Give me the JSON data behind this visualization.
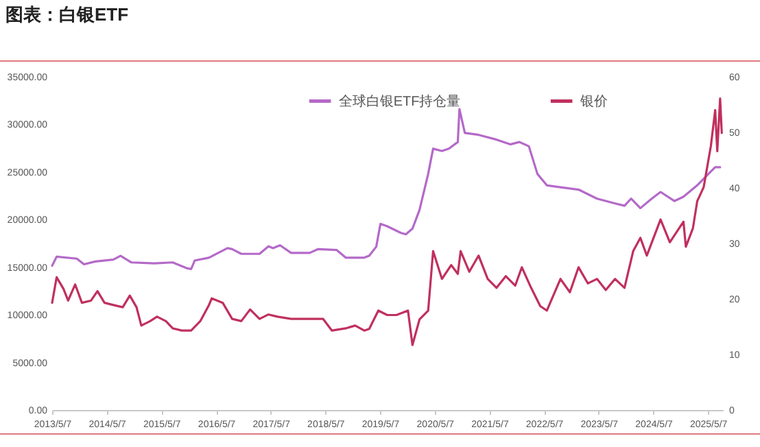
{
  "chart_data": {
    "type": "line",
    "title": "图表：白银ETF",
    "legend": "top",
    "xlim": [
      "2013-05-07",
      "2025-08-15"
    ],
    "xticks": [
      {
        "value": "2013-05-07",
        "label": "2013/5/7"
      },
      {
        "value": "2014-05-07",
        "label": "2014/5/7"
      },
      {
        "value": "2015-05-07",
        "label": "2015/5/7"
      },
      {
        "value": "2016-05-07",
        "label": "2016/5/7"
      },
      {
        "value": "2017-05-07",
        "label": "2017/5/7"
      },
      {
        "value": "2018-05-07",
        "label": "2018/5/7"
      },
      {
        "value": "2019-05-07",
        "label": "2019/5/7"
      },
      {
        "value": "2020-05-07",
        "label": "2020/5/7"
      },
      {
        "value": "2021-05-07",
        "label": "2021/5/7"
      },
      {
        "value": "2022-05-07",
        "label": "2022/5/7"
      },
      {
        "value": "2023-05-07",
        "label": "2023/5/7"
      },
      {
        "value": "2024-05-07",
        "label": "2024/5/7"
      },
      {
        "value": "2025-05-07",
        "label": "2025/5/7"
      }
    ],
    "ylim": [
      0,
      35000
    ],
    "yticks": [
      {
        "value": 0,
        "label": "0.00"
      },
      {
        "value": 5000,
        "label": "5000.00"
      },
      {
        "value": 10000,
        "label": "10000.00"
      },
      {
        "value": 15000,
        "label": "15000.00"
      },
      {
        "value": 20000,
        "label": "20000.00"
      },
      {
        "value": 25000,
        "label": "25000.00"
      },
      {
        "value": 30000,
        "label": "30000.00"
      },
      {
        "value": 35000,
        "label": "35000.00"
      }
    ],
    "y2lim": [
      0,
      60
    ],
    "y2ticks": [
      0,
      10,
      20,
      30,
      40,
      50,
      60
    ],
    "series": [
      {
        "name": "全球白银ETF持仓量",
        "color": "#b469c8",
        "x": [
          "2013-05-07",
          "2013-06-06",
          "2013-10-19",
          "2013-12-06",
          "2014-02-21",
          "2014-06-20",
          "2014-08-07",
          "2014-10-19",
          "2015-03-20",
          "2015-07-22",
          "2015-10-22",
          "2015-11-22",
          "2015-12-16",
          "2016-03-20",
          "2016-07-22",
          "2016-08-22",
          "2016-10-22",
          "2017-02-21",
          "2017-04-22",
          "2017-05-22",
          "2017-07-08",
          "2017-09-20",
          "2018-01-22",
          "2018-03-20",
          "2018-07-22",
          "2018-09-20",
          "2019-01-22",
          "2019-02-24",
          "2019-04-12",
          "2019-05-10",
          "2019-06-24",
          "2019-09-24",
          "2019-10-27",
          "2019-12-10",
          "2020-01-26",
          "2020-03-24",
          "2020-04-26",
          "2020-06-24",
          "2020-08-10",
          "2020-10-08",
          "2020-10-19",
          "2020-11-24",
          "2021-02-24",
          "2021-06-24",
          "2021-09-24",
          "2021-11-24",
          "2022-01-26",
          "2022-03-24",
          "2022-05-26",
          "2022-08-25",
          "2022-12-24",
          "2023-04-26",
          "2023-08-25",
          "2023-10-27",
          "2023-12-10",
          "2024-02-10",
          "2024-04-26",
          "2024-06-24",
          "2024-09-24",
          "2024-11-24",
          "2025-02-24",
          "2025-05-10",
          "2025-06-24",
          "2025-07-27"
        ],
        "values": [
          15150,
          16100,
          15900,
          15300,
          15600,
          15800,
          16200,
          15500,
          15400,
          15500,
          14900,
          14800,
          15700,
          16000,
          17000,
          16900,
          16400,
          16400,
          17200,
          17000,
          17300,
          16500,
          16500,
          16900,
          16800,
          16000,
          16000,
          16200,
          17150,
          19550,
          19300,
          18600,
          18450,
          19050,
          21000,
          24800,
          27450,
          27200,
          27450,
          28150,
          31600,
          29100,
          28900,
          28400,
          27900,
          28150,
          27700,
          24800,
          23600,
          23400,
          23150,
          22200,
          21700,
          21450,
          22200,
          21200,
          22200,
          22900,
          21950,
          22400,
          23600,
          24800,
          25500,
          25500
        ]
      },
      {
        "name": "银价",
        "color": "#c0305e",
        "axis": "y2",
        "x": [
          "2013-05-07",
          "2013-06-06",
          "2013-07-22",
          "2013-08-22",
          "2013-10-08",
          "2013-11-22",
          "2014-01-22",
          "2014-03-06",
          "2014-04-22",
          "2014-06-20",
          "2014-08-22",
          "2014-10-08",
          "2014-11-22",
          "2014-12-24",
          "2015-02-21",
          "2015-04-08",
          "2015-06-06",
          "2015-07-22",
          "2015-09-20",
          "2015-11-22",
          "2016-01-22",
          "2016-03-20",
          "2016-04-08",
          "2016-06-20",
          "2016-08-22",
          "2016-10-22",
          "2016-12-20",
          "2017-02-21",
          "2017-04-22",
          "2017-06-20",
          "2017-09-20",
          "2018-01-22",
          "2018-04-22",
          "2018-06-20",
          "2018-09-20",
          "2018-11-22",
          "2019-01-22",
          "2019-02-24",
          "2019-04-26",
          "2019-06-24",
          "2019-08-25",
          "2019-11-10",
          "2019-12-10",
          "2020-01-26",
          "2020-03-24",
          "2020-04-26",
          "2020-06-24",
          "2020-08-25",
          "2020-10-08",
          "2020-10-27",
          "2020-12-24",
          "2021-02-24",
          "2021-04-26",
          "2021-06-24",
          "2021-08-25",
          "2021-10-27",
          "2021-12-10",
          "2022-02-10",
          "2022-04-12",
          "2022-05-26",
          "2022-08-25",
          "2022-10-27",
          "2022-12-24",
          "2023-02-24",
          "2023-04-26",
          "2023-06-24",
          "2023-08-25",
          "2023-10-27",
          "2023-12-24",
          "2024-02-10",
          "2024-03-24",
          "2024-06-24",
          "2024-08-25",
          "2024-11-24",
          "2024-12-10",
          "2025-01-26",
          "2025-02-24",
          "2025-04-08",
          "2025-05-26",
          "2025-06-24",
          "2025-07-08",
          "2025-07-27",
          "2025-08-07"
        ],
        "values": [
          19.3,
          23.9,
          21.8,
          19.7,
          22.6,
          19.3,
          19.7,
          21.4,
          19.3,
          18.9,
          18.5,
          20.6,
          18.5,
          15.2,
          16.0,
          16.8,
          16.0,
          14.7,
          14.3,
          14.3,
          16.0,
          18.9,
          20.1,
          19.3,
          16.4,
          16.0,
          18.1,
          16.4,
          17.2,
          16.8,
          16.4,
          16.4,
          16.4,
          14.3,
          14.7,
          15.2,
          14.3,
          14.6,
          17.9,
          17.1,
          17.1,
          17.9,
          11.7,
          16.3,
          17.9,
          28.6,
          23.6,
          26.1,
          24.5,
          28.6,
          24.9,
          27.8,
          23.6,
          22.0,
          24.1,
          22.4,
          25.7,
          22.0,
          18.7,
          17.9,
          23.6,
          21.2,
          25.7,
          22.8,
          23.6,
          21.6,
          23.6,
          22.0,
          28.6,
          31.0,
          27.8,
          34.3,
          30.2,
          33.9,
          29.4,
          32.7,
          37.6,
          40.1,
          47.5,
          54.0,
          46.6,
          56.1,
          49.9
        ]
      }
    ]
  }
}
